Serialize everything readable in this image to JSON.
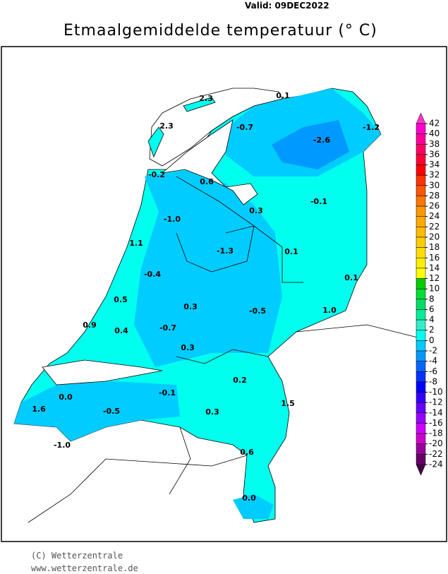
{
  "header": {
    "valid": "Valid:  09DEC2022",
    "title": "Etmaalgemiddelde temperatuur (° C)"
  },
  "stations": [
    "2.3",
    "0.1",
    "-0.7",
    "-2.6",
    "-1.2",
    "2.3",
    "-0.2",
    "0.6",
    "0.3",
    "-0.1",
    "-1.0",
    "1.1",
    "-1.3",
    "0.1",
    "0.1",
    "-0.4",
    "0.5",
    "0.3",
    "-0.5",
    "1.0",
    "0.9",
    "0.4",
    "-0.7",
    "0.3",
    "0.2",
    "-0.1",
    "0.0",
    "1.6",
    "-0.5",
    "0.3",
    "1.5",
    "-1.0",
    "0.6",
    "0.0"
  ],
  "legend": {
    "ticks": [
      42,
      40,
      38,
      36,
      34,
      32,
      30,
      28,
      26,
      24,
      22,
      20,
      18,
      16,
      14,
      12,
      10,
      8,
      6,
      4,
      2,
      0,
      -2,
      -4,
      -6,
      -8,
      -10,
      -12,
      -14,
      -16,
      -18,
      -20,
      -22,
      -24
    ],
    "colors": [
      "#ff33cc",
      "#ff00cc",
      "#ff0099",
      "#ff0066",
      "#ff0033",
      "#ff0000",
      "#ff3300",
      "#ff5500",
      "#ff7700",
      "#ff9900",
      "#ffaa00",
      "#ffbb00",
      "#ffcc00",
      "#ffdd00",
      "#ffee00",
      "#ffff00",
      "#00cc00",
      "#00dd33",
      "#00dd66",
      "#00ee99",
      "#33eecc",
      "#00ffee",
      "#00ccff",
      "#0099ff",
      "#0066ff",
      "#0033ff",
      "#0000ff",
      "#3300ff",
      "#6600ff",
      "#9900ff",
      "#cc00ff",
      "#cc00cc",
      "#990099",
      "#660066",
      "#440044"
    ]
  },
  "footer": {
    "copyright": "(C) Wetterzentrale",
    "url": "www.wetterzentrale.de"
  }
}
